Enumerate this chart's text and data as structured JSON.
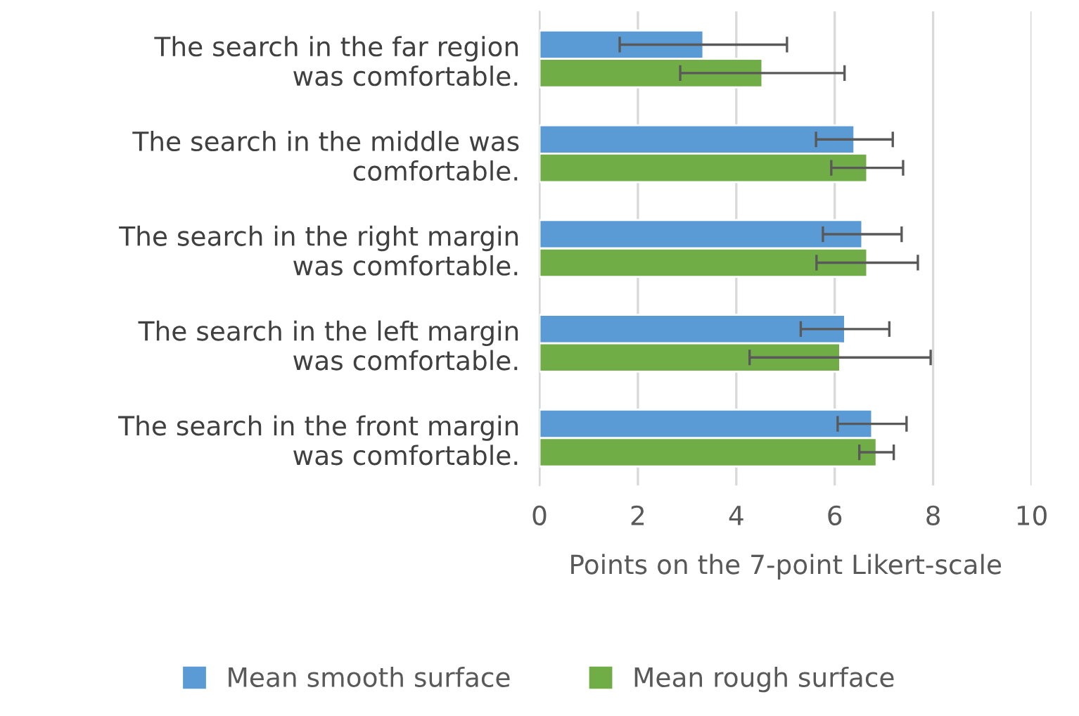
{
  "chart_data": {
    "type": "bar",
    "orientation": "horizontal",
    "categories": [
      "The search in the far region\nwas comfortable.",
      "The search in the middle was\ncomfortable.",
      "The search in the right margin\nwas comfortable.",
      "The search in the left margin\nwas comfortable.",
      "The search in the front margin\nwas comfortable."
    ],
    "series": [
      {
        "name": "Mean smooth surface",
        "color": "#5b9bd5",
        "values": [
          3.33,
          6.4,
          6.56,
          6.21,
          6.76
        ],
        "errors": [
          1.7,
          0.78,
          0.8,
          0.9,
          0.7
        ]
      },
      {
        "name": "Mean rough surface",
        "color": "#70ad47",
        "values": [
          4.53,
          6.66,
          6.66,
          6.11,
          6.85
        ],
        "errors": [
          1.67,
          0.73,
          1.03,
          1.84,
          0.35
        ]
      }
    ],
    "xlabel": "Points on the 7-point Likert-scale",
    "xlim": [
      0,
      10
    ],
    "xticks": [
      0,
      2,
      4,
      6,
      8,
      10
    ],
    "grid": "x",
    "legend": "bottom"
  }
}
